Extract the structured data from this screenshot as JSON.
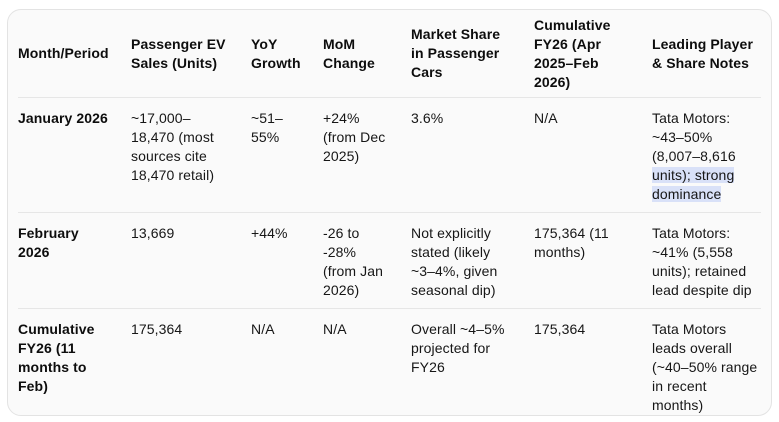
{
  "chart_data": {
    "type": "table",
    "title": "",
    "columns": [
      "Month/Period",
      "Passenger EV Sales (Units)",
      "YoY Growth",
      "MoM Change",
      "Market Share in Passenger Cars",
      "Cumulative FY26 (Apr 2025–Feb 2026)",
      "Leading Player & Share Notes"
    ],
    "rows": [
      [
        "January 2026",
        "~17,000–18,470 (most sources cite 18,470 retail)",
        "~51–55%",
        "+24% (from Dec 2025)",
        "3.6%",
        "N/A",
        "Tata Motors: ~43–50% (8,007–8,616 units); strong dominance"
      ],
      [
        "February 2026",
        "13,669",
        "+44%",
        "-26 to -28% (from Jan 2026)",
        "Not explicitly stated (likely ~3–4%, given seasonal dip)",
        "175,364 (11 months)",
        "Tata Motors: ~41% (5,558 units); retained lead despite dip"
      ],
      [
        "Cumulative FY26 (11 months to Feb)",
        "175,364",
        "N/A",
        "N/A",
        "Overall ~4–5% projected for FY26",
        "175,364",
        "Tata Motors leads overall (~40–50% range in recent months)"
      ]
    ]
  },
  "selection": {
    "cell_text_before_highlight": "Tata Motors: ~43–50% (8,007–8,616 ",
    "highlighted_text": "units); strong dominance",
    "highlight_color": "#d9e1f8"
  },
  "colors": {
    "card_background": "#fafafa",
    "card_border": "#e3e3e3",
    "row_divider": "#e6e6e6",
    "text": "#161616"
  }
}
